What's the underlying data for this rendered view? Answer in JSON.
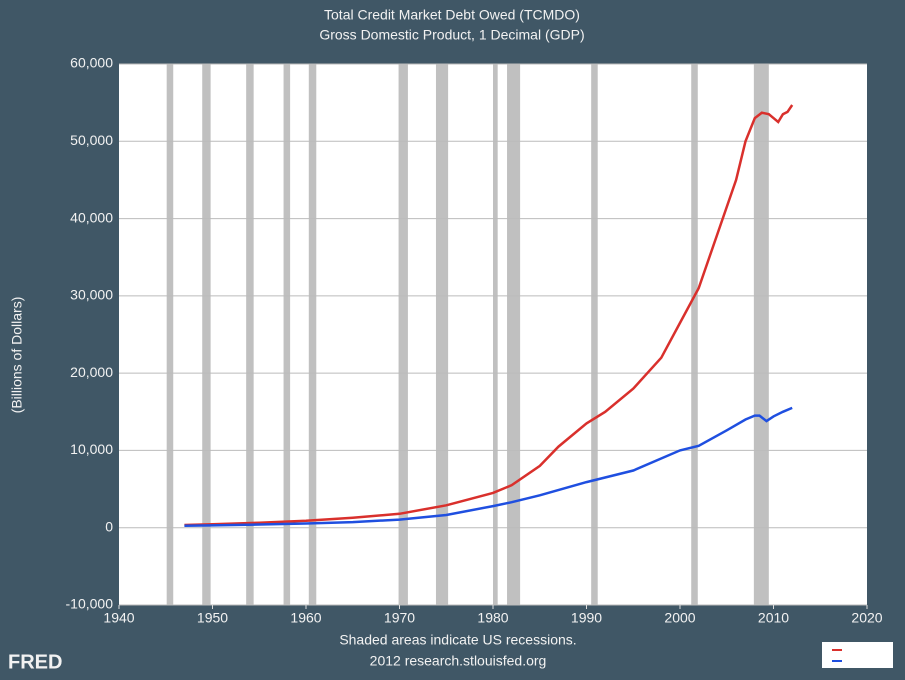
{
  "chart_data": {
    "type": "line",
    "title": "Total Credit Market Debt Owed (TCMDO)",
    "subtitle": "Gross Domestic Product, 1 Decimal (GDP)",
    "y_label": "(Billions of Dollars)",
    "note": "Shaded areas indicate US recessions.",
    "source": "2012 research.stlouisfed.org",
    "logo": "FRED",
    "xlim": [
      1940,
      2020
    ],
    "xticks": [
      1940,
      1950,
      1960,
      1970,
      1980,
      1990,
      2000,
      2010,
      2020
    ],
    "ylim": [
      -10000,
      60000
    ],
    "yticks": [
      {
        "value": -10000,
        "label": "-10,000"
      },
      0,
      {
        "value": 10000,
        "label": "10,000"
      },
      {
        "value": 20000,
        "label": "20,000"
      },
      {
        "value": 30000,
        "label": "30,000"
      },
      {
        "value": 40000,
        "label": "40,000"
      },
      {
        "value": 50000,
        "label": "50,000"
      },
      {
        "value": 60000,
        "label": "60,000"
      }
    ],
    "grid": true,
    "recession_color": "#c0c0c0",
    "recessions": [
      [
        1945.1,
        1945.8
      ],
      [
        1948.9,
        1949.8
      ],
      [
        1953.6,
        1954.4
      ],
      [
        1957.6,
        1958.3
      ],
      [
        1960.3,
        1961.1
      ],
      [
        1969.9,
        1970.9
      ],
      [
        1973.9,
        1975.2
      ],
      [
        1980.0,
        1980.5
      ],
      [
        1981.5,
        1982.9
      ],
      [
        1990.5,
        1991.2
      ],
      [
        2001.2,
        2001.9
      ],
      [
        2007.9,
        2009.5
      ]
    ],
    "series": [
      {
        "name": "Total Credit Market Debt Owed (TCMDO)",
        "color": "#d9302c",
        "x": [
          1947,
          1950,
          1955,
          1960,
          1965,
          1970,
          1975,
          1980,
          1982,
          1985,
          1987,
          1990,
          1992,
          1995,
          1998,
          2000,
          2002,
          2004,
          2006,
          2007,
          2008,
          2008.75,
          2009.5,
          2010,
          2010.5,
          2011,
          2011.5,
          2012
        ],
        "values": [
          350,
          450,
          650,
          900,
          1300,
          1800,
          2900,
          4500,
          5500,
          8000,
          10500,
          13500,
          15000,
          18000,
          22000,
          26500,
          31000,
          38000,
          45000,
          50000,
          53000,
          53700,
          53500,
          53000,
          52500,
          53500,
          53800,
          54700
        ]
      },
      {
        "name": "Gross Domestic Product, 1 Decimal (GDP)",
        "color": "#1f4fe0",
        "x": [
          1947,
          1950,
          1955,
          1960,
          1965,
          1970,
          1975,
          1980,
          1982,
          1985,
          1990,
          1995,
          2000,
          2002,
          2005,
          2007,
          2008,
          2008.5,
          2009.25,
          2010,
          2011,
          2012
        ],
        "values": [
          250,
          300,
          420,
          540,
          720,
          1050,
          1650,
          2800,
          3300,
          4200,
          5900,
          7400,
          10000,
          10600,
          12600,
          14000,
          14500,
          14500,
          13800,
          14400,
          15000,
          15500
        ]
      }
    ]
  }
}
